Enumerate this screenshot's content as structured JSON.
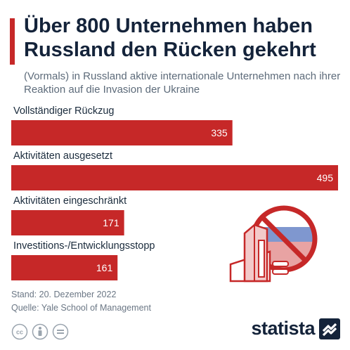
{
  "header": {
    "title": "Über 800 Unternehmen haben Russland den Rücken gekehrt",
    "subtitle": "(Vormals) in Russland aktive internationale Unternehmen nach ihrer Reaktion auf die Invasion der Ukraine"
  },
  "chart_data": {
    "type": "bar",
    "orientation": "horizontal",
    "categories": [
      "Vollständiger Rückzug",
      "Aktivitäten ausgesetzt",
      "Aktivitäten eingeschränkt",
      "Investitions-/Entwicklungsstopp"
    ],
    "values": [
      335,
      495,
      171,
      161
    ],
    "value_labels": [
      "335",
      "495",
      "171",
      "161"
    ],
    "xlim": [
      0,
      495
    ],
    "grid": false,
    "bar_color": "#c62828"
  },
  "footer": {
    "stand": "Stand: 20. Dezember 2022",
    "source": "Quelle: Yale School of Management"
  },
  "brand": {
    "name": "statista"
  },
  "icons": [
    "cc-icon",
    "attribution-icon",
    "no-derivatives-icon",
    "statista-logo-icon",
    "no-russia-business-icon"
  ],
  "colors": {
    "accent": "#c62828",
    "title": "#14233a",
    "muted": "#6b7785"
  }
}
